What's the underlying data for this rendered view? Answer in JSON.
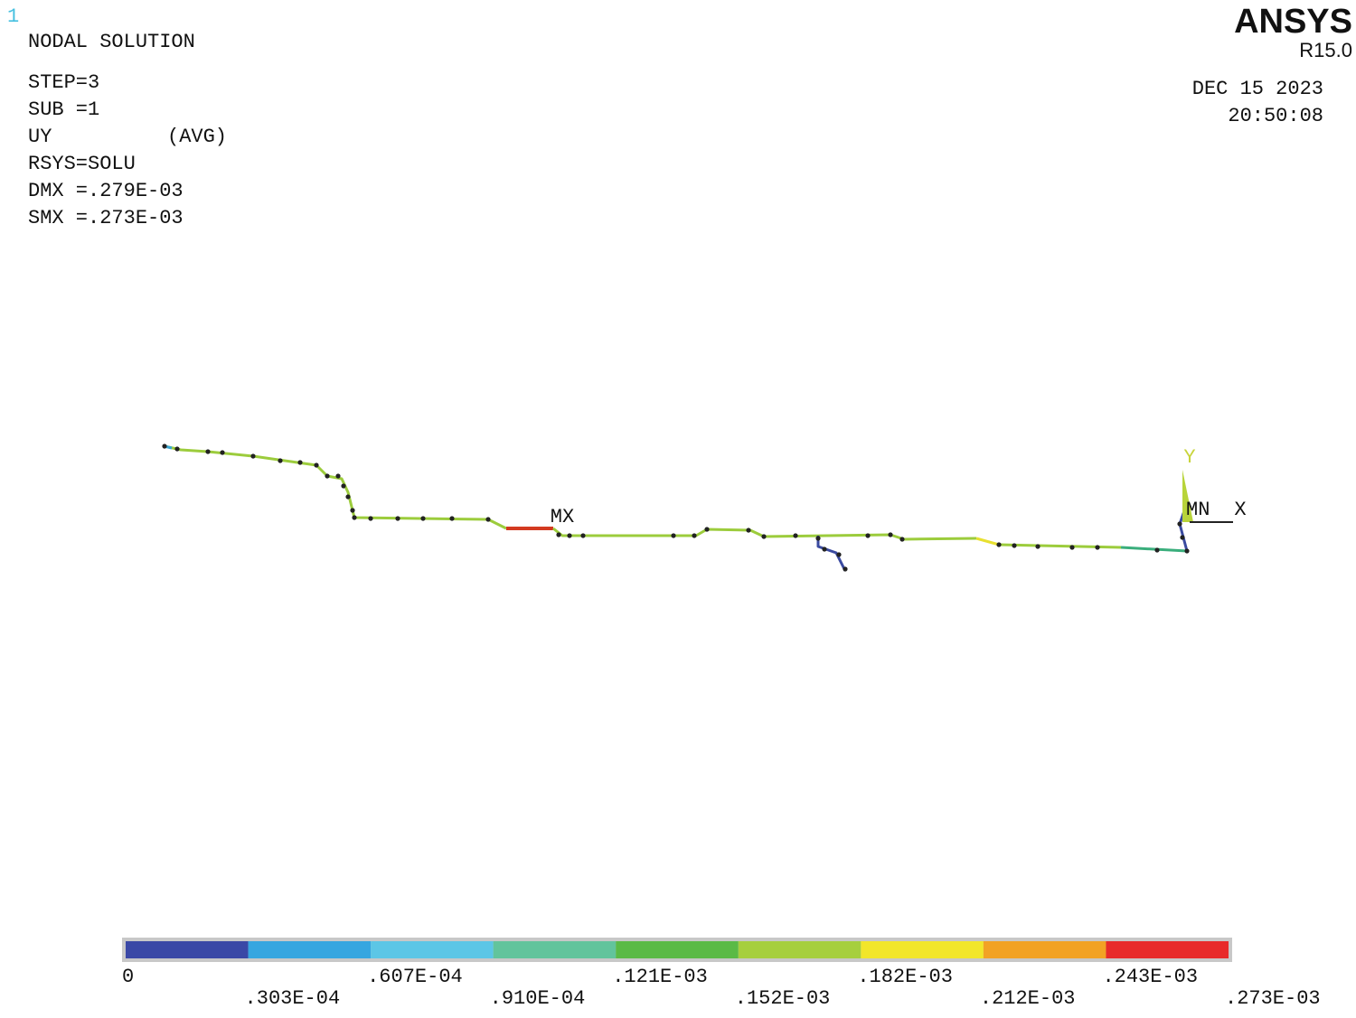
{
  "window_number": "1",
  "header": {
    "lines": [
      "NODAL SOLUTION",
      "STEP=3",
      "SUB =1",
      "UY",
      "RSYS=SOLU",
      "DMX =.279E-03",
      "SMX =.273E-03"
    ],
    "avg": "(AVG)"
  },
  "brand": {
    "name": "ANSYS",
    "version": "R15.0",
    "date": "DEC 15 2023",
    "time": "20:50:08"
  },
  "plot": {
    "max_label": "MX",
    "min_label": "MN",
    "axis_x": "X",
    "axis_y": "Y"
  },
  "legend": {
    "colors": [
      "#3a48a6",
      "#36a6e0",
      "#5cc6e6",
      "#62c49c",
      "#5aba46",
      "#a6cf3e",
      "#f2e62a",
      "#f2a224",
      "#e82a2a"
    ],
    "labels": [
      "0",
      ".303E-04",
      ".607E-04",
      ".910E-04",
      ".121E-03",
      ".152E-03",
      ".182E-03",
      ".212E-03",
      ".243E-03",
      ".273E-03"
    ]
  }
}
